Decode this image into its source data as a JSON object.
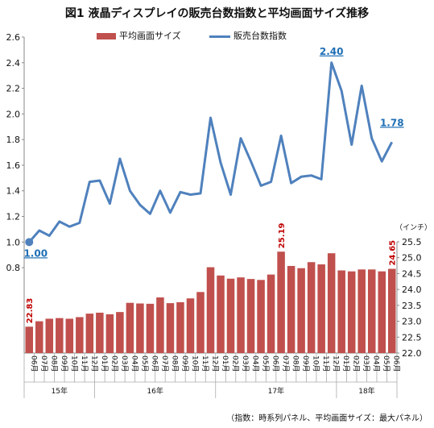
{
  "title": "図1  液晶ディスプレイの販売台数指数と平均画面サイズ推移",
  "legend": {
    "bar_label": "平均画面サイズ",
    "line_label": "販売台数指数"
  },
  "unit_label": "（インチ）",
  "footnote": "（指数：時系列パネル、平均画面サイズ：最大パネル）",
  "colors": {
    "bar": "#c0504d",
    "line": "#4f81bd",
    "index_label": "#1f6fb5",
    "size_label": "#c00000"
  },
  "chart_data": [
    {
      "type": "line",
      "name": "販売台数指数",
      "ylim": [
        0.7,
        2.6
      ],
      "yticks": [
        "0.8",
        "1.0",
        "1.2",
        "1.4",
        "1.6",
        "1.8",
        "2.0",
        "2.2",
        "2.4",
        "2.6"
      ],
      "y": [
        1.0,
        1.09,
        1.05,
        1.16,
        1.12,
        1.15,
        1.47,
        1.48,
        1.3,
        1.65,
        1.4,
        1.29,
        1.22,
        1.4,
        1.23,
        1.39,
        1.37,
        1.38,
        1.97,
        1.62,
        1.37,
        1.81,
        1.63,
        1.44,
        1.47,
        1.83,
        1.46,
        1.51,
        1.52,
        1.49,
        2.4,
        2.18,
        1.76,
        2.22,
        1.81,
        1.63,
        1.78
      ],
      "annotations": [
        {
          "index": 0,
          "label": "1.00"
        },
        {
          "index": 30,
          "label": "2.40"
        },
        {
          "index": 36,
          "label": "1.78"
        }
      ]
    },
    {
      "type": "bar",
      "name": "平均画面サイズ",
      "ylim": [
        22.0,
        25.5
      ],
      "yticks": [
        "22.0",
        "22.5",
        "23.0",
        "23.5",
        "24.0",
        "24.5",
        "25.0",
        "25.5"
      ],
      "values": [
        22.83,
        23.0,
        23.08,
        23.1,
        23.08,
        23.13,
        23.24,
        23.27,
        23.22,
        23.29,
        23.58,
        23.56,
        23.55,
        23.75,
        23.57,
        23.6,
        23.72,
        23.92,
        24.7,
        24.44,
        24.34,
        24.38,
        24.33,
        24.3,
        24.47,
        25.19,
        24.74,
        24.67,
        24.86,
        24.79,
        25.14,
        24.6,
        24.57,
        24.63,
        24.63,
        24.57,
        24.65
      ],
      "annotations": [
        {
          "index": 0,
          "label": "22.83"
        },
        {
          "index": 25,
          "label": "25.19"
        },
        {
          "index": 36,
          "label": "24.65"
        }
      ]
    }
  ],
  "months": [
    "06月",
    "07月",
    "08月",
    "09月",
    "10月",
    "11月",
    "12月",
    "01月",
    "02月",
    "03月",
    "04月",
    "05月",
    "06月",
    "07月",
    "08月",
    "09月",
    "10月",
    "11月",
    "12月",
    "01月",
    "02月",
    "03月",
    "04月",
    "05月",
    "06月",
    "07月",
    "08月",
    "09月",
    "10月",
    "11月",
    "12月",
    "01月",
    "02月",
    "03月",
    "04月",
    "05月",
    "06月"
  ],
  "years": [
    {
      "label": "15年",
      "start": 0,
      "end": 6
    },
    {
      "label": "16年",
      "start": 7,
      "end": 18
    },
    {
      "label": "17年",
      "start": 19,
      "end": 30
    },
    {
      "label": "18年",
      "start": 31,
      "end": 36
    }
  ]
}
